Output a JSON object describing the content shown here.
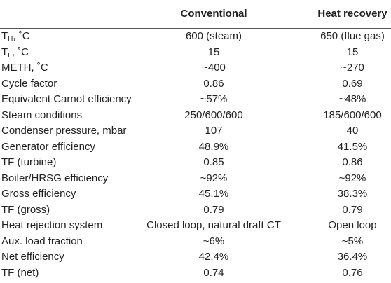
{
  "table": {
    "header": [
      "Conventional",
      "Heat recovery"
    ],
    "rows": [
      [
        {
          "text": "T",
          "sub": "H",
          "suffix": ", ˚C"
        },
        "600 (steam)",
        "650 (flue gas)"
      ],
      [
        {
          "text": "T",
          "sub": "L",
          "suffix": ", ˚C"
        },
        "15",
        "15"
      ],
      [
        "METH, ˚C",
        "~400",
        "~270"
      ],
      [
        "Cycle factor",
        "0.86",
        "0.69"
      ],
      [
        "Equivalent Carnot efficiency",
        "~57%",
        "~48%"
      ],
      [
        "Steam conditions",
        "250/600/600",
        "185/600/600"
      ],
      [
        "Condenser pressure, mbar",
        "107",
        "40"
      ],
      [
        "Generator efficiency",
        "48.9%",
        "41.5%"
      ],
      [
        "TF (turbine)",
        "0.85",
        "0.86"
      ],
      [
        "Boiler/HRSG efficiency",
        "~92%",
        "~92%"
      ],
      [
        "Gross efficiency",
        "45.1%",
        "38.3%"
      ],
      [
        "TF (gross)",
        "0.79",
        "0.79"
      ],
      [
        "Heat rejection system",
        "Closed loop, natural draft CT",
        "Open loop"
      ],
      [
        "Aux. load fraction",
        "~6%",
        "~5%"
      ],
      [
        "Net efficiency",
        "42.4%",
        "36.4%"
      ],
      [
        "TF (net)",
        "0.74",
        "0.76"
      ]
    ]
  }
}
